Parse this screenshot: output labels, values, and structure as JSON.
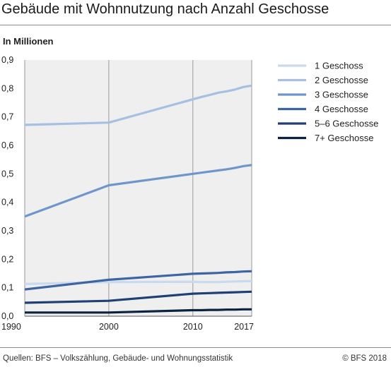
{
  "title": "Gebäude mit Wohnnutzung nach Anzahl Geschosse",
  "unit_label": "In Millionen",
  "source": "Quellen: BFS – Volkszählung, Gebäude- und Wohnungsstatistik",
  "copyright": "© BFS 2018",
  "chart_data": {
    "type": "line",
    "title": "Gebäude mit Wohnnutzung nach Anzahl Geschosse",
    "ylabel": "In Millionen",
    "xlabel": "",
    "x_ticks": [
      "1990",
      "2000",
      "2010",
      "2017"
    ],
    "y_ticks": [
      "0,0",
      "0,1",
      "0,2",
      "0,3",
      "0,4",
      "0,5",
      "0,6",
      "0,7",
      "0,8",
      "0,9"
    ],
    "xlim": [
      1990,
      2017
    ],
    "ylim": [
      0,
      0.9
    ],
    "grid": "vertical at ticks",
    "background": "#efefef",
    "legend": "right",
    "series": [
      {
        "name": "1 Geschoss",
        "color": "#c9d9ee",
        "x": [
          1990,
          2000,
          2010,
          2011,
          2012,
          2013,
          2014,
          2015,
          2016,
          2017
        ],
        "y": [
          0.113,
          0.12,
          0.121,
          0.12,
          0.12,
          0.12,
          0.121,
          0.122,
          0.123,
          0.123
        ]
      },
      {
        "name": "2 Geschosse",
        "color": "#a6bfe3",
        "x": [
          1990,
          2000,
          2010,
          2011,
          2012,
          2013,
          2014,
          2015,
          2016,
          2017
        ],
        "y": [
          0.672,
          0.68,
          0.762,
          0.77,
          0.777,
          0.785,
          0.79,
          0.796,
          0.805,
          0.81
        ]
      },
      {
        "name": "3 Geschosse",
        "color": "#6f96cc",
        "x": [
          1990,
          2000,
          2010,
          2011,
          2012,
          2013,
          2014,
          2015,
          2016,
          2017
        ],
        "y": [
          0.35,
          0.46,
          0.5,
          0.504,
          0.508,
          0.512,
          0.516,
          0.521,
          0.527,
          0.531
        ]
      },
      {
        "name": "4 Geschosse",
        "color": "#3f64a2",
        "x": [
          1990,
          2000,
          2010,
          2011,
          2012,
          2013,
          2014,
          2015,
          2016,
          2017
        ],
        "y": [
          0.094,
          0.128,
          0.149,
          0.15,
          0.151,
          0.152,
          0.154,
          0.155,
          0.157,
          0.158
        ]
      },
      {
        "name": "5–6 Geschosse",
        "color": "#203f74",
        "x": [
          1990,
          2000,
          2010,
          2011,
          2012,
          2013,
          2014,
          2015,
          2016,
          2017
        ],
        "y": [
          0.047,
          0.054,
          0.079,
          0.08,
          0.081,
          0.082,
          0.083,
          0.084,
          0.085,
          0.086
        ]
      },
      {
        "name": "7+ Geschosse",
        "color": "#0c2340",
        "x": [
          1990,
          2000,
          2010,
          2011,
          2012,
          2013,
          2014,
          2015,
          2016,
          2017
        ],
        "y": [
          0.013,
          0.013,
          0.021,
          0.021,
          0.022,
          0.022,
          0.023,
          0.023,
          0.024,
          0.024
        ]
      }
    ]
  }
}
